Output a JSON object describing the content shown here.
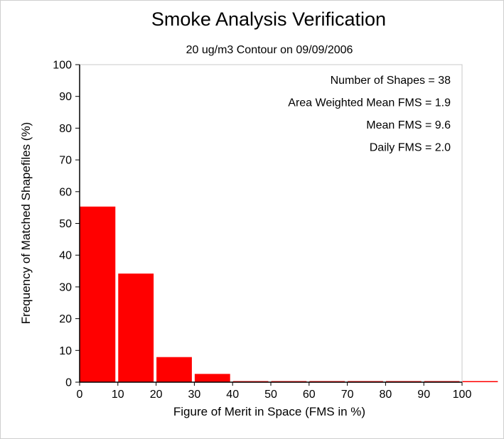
{
  "chart_data": {
    "type": "bar",
    "title": "Smoke Analysis Verification",
    "subtitle": "20 ug/m3 Contour on 09/09/2006",
    "xlabel": "Figure of Merit in Space (FMS in %)",
    "ylabel": "Frequency of Matched Shapefiles (%)",
    "xlim": [
      0,
      100
    ],
    "ylim": [
      0,
      100
    ],
    "xticks": [
      "0",
      "10",
      "20",
      "30",
      "40",
      "50",
      "60",
      "70",
      "80",
      "90",
      "100"
    ],
    "yticks": [
      "0",
      "10",
      "20",
      "30",
      "40",
      "50",
      "60",
      "70",
      "80",
      "90",
      "100"
    ],
    "bin_edges": [
      0,
      10,
      20,
      30,
      40,
      50,
      60,
      70,
      80,
      90,
      100,
      110
    ],
    "values": [
      55.3,
      34.2,
      7.9,
      2.6,
      0,
      0,
      0,
      0,
      0,
      0,
      0
    ],
    "bar_color": "#ff0000",
    "grid": false,
    "annotations": [
      "Number of Shapes = 38",
      "Area Weighted Mean FMS = 1.9",
      "Mean FMS = 9.6",
      "Daily FMS = 2.0"
    ]
  }
}
